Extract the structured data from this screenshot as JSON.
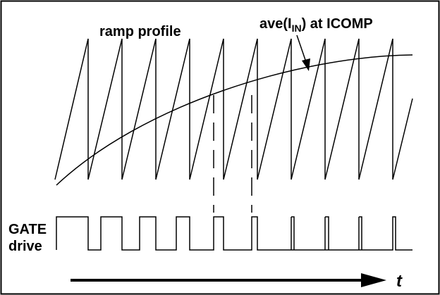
{
  "labels": {
    "ramp": "ramp profile",
    "ave_prefix": "ave(I",
    "ave_sub": "IN",
    "ave_suffix": ") at ICOMP",
    "gate_line1": "GATE",
    "gate_line2": "drive",
    "time": "t"
  },
  "colors": {
    "stroke": "#000000",
    "background": "#ffffff"
  },
  "waveforms": {
    "ramp_cycles": 11,
    "gate_pulses": 10,
    "dashed_markers": 2
  }
}
